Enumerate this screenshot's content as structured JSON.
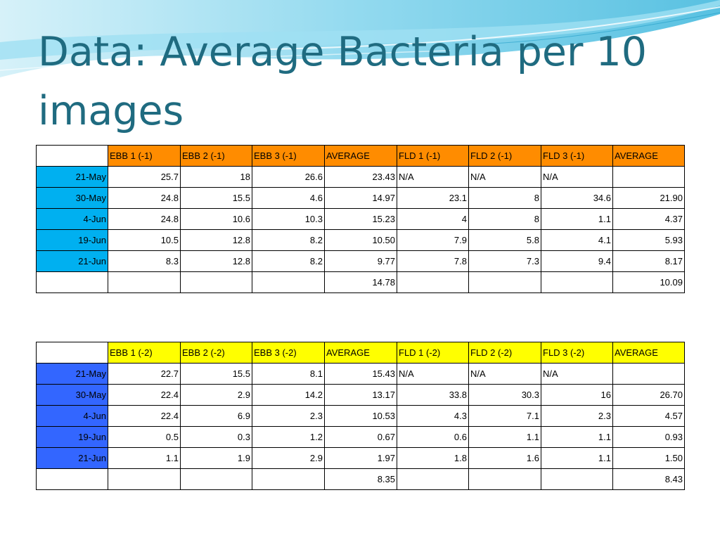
{
  "slide": {
    "title": "Data: Average Bacteria per 10 images"
  },
  "colors": {
    "title": "#1f6b80",
    "table1_header": "#ff8c00",
    "table1_dates": "#00b0f0",
    "table2_header": "#ffff00",
    "table2_dates": "#3366ff"
  },
  "tables": [
    {
      "headers": [
        "",
        "EBB 1 (-1)",
        "EBB 2 (-1)",
        "EBB 3 (-1)",
        "AVERAGE",
        "FLD 1 (-1)",
        "FLD 2 (-1)",
        "FLD 3 (-1)",
        "AVERAGE"
      ],
      "rows": [
        {
          "date": "21-May",
          "cells": [
            "25.7",
            "18",
            "26.6",
            "23.43",
            "N/A",
            "N/A",
            "N/A",
            ""
          ]
        },
        {
          "date": "30-May",
          "cells": [
            "24.8",
            "15.5",
            "4.6",
            "14.97",
            "23.1",
            "8",
            "34.6",
            "21.90"
          ]
        },
        {
          "date": "4-Jun",
          "cells": [
            "24.8",
            "10.6",
            "10.3",
            "15.23",
            "4",
            "8",
            "1.1",
            "4.37"
          ]
        },
        {
          "date": "19-Jun",
          "cells": [
            "10.5",
            "12.8",
            "8.2",
            "10.50",
            "7.9",
            "5.8",
            "4.1",
            "5.93"
          ]
        },
        {
          "date": "21-Jun",
          "cells": [
            "8.3",
            "12.8",
            "8.2",
            "9.77",
            "7.8",
            "7.3",
            "9.4",
            "8.17"
          ]
        }
      ],
      "footer": [
        "",
        "",
        "",
        "",
        "14.78",
        "",
        "",
        "",
        "10.09"
      ]
    },
    {
      "headers": [
        "",
        "EBB 1 (-2)",
        "EBB 2 (-2)",
        "EBB 3 (-2)",
        "AVERAGE",
        "FLD 1 (-2)",
        "FLD 2 (-2)",
        "FLD 3 (-2)",
        "AVERAGE"
      ],
      "rows": [
        {
          "date": "21-May",
          "cells": [
            "22.7",
            "15.5",
            "8.1",
            "15.43",
            "N/A",
            "N/A",
            "N/A",
            ""
          ]
        },
        {
          "date": "30-May",
          "cells": [
            "22.4",
            "2.9",
            "14.2",
            "13.17",
            "33.8",
            "30.3",
            "16",
            "26.70"
          ]
        },
        {
          "date": "4-Jun",
          "cells": [
            "22.4",
            "6.9",
            "2.3",
            "10.53",
            "4.3",
            "7.1",
            "2.3",
            "4.57"
          ]
        },
        {
          "date": "19-Jun",
          "cells": [
            "0.5",
            "0.3",
            "1.2",
            "0.67",
            "0.6",
            "1.1",
            "1.1",
            "0.93"
          ]
        },
        {
          "date": "21-Jun",
          "cells": [
            "1.1",
            "1.9",
            "2.9",
            "1.97",
            "1.8",
            "1.6",
            "1.1",
            "1.50"
          ]
        }
      ],
      "footer": [
        "",
        "",
        "",
        "",
        "8.35",
        "",
        "",
        "",
        "8.43"
      ]
    }
  ]
}
